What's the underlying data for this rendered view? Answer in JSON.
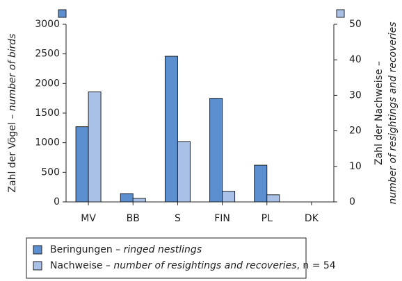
{
  "chart_data": {
    "type": "bar",
    "categories": [
      "MV",
      "BB",
      "S",
      "FIN",
      "PL",
      "DK"
    ],
    "series": [
      {
        "name": "Beringungen – ringed nestlings",
        "color": "#5b8fd0",
        "values": [
          1270,
          140,
          2460,
          1750,
          620,
          0
        ]
      },
      {
        "name": "Nachweise – number of resightings and recoveries, n = 54",
        "color": "#a9c1e6",
        "axis": "y2",
        "values": [
          31,
          1,
          17,
          3,
          2,
          0
        ]
      }
    ],
    "ylabel": "Zahl der Vögel – number of birds",
    "y2label": "Zahl der Nachweise – number of resightings and recoveries",
    "ylim": [
      0,
      3000
    ],
    "yticks": [
      0,
      500,
      1000,
      1500,
      2000,
      2500,
      3000
    ],
    "y2lim": [
      0,
      50
    ],
    "y2ticks": [
      0,
      10,
      20,
      30,
      40,
      50
    ],
    "grid": false
  }
}
